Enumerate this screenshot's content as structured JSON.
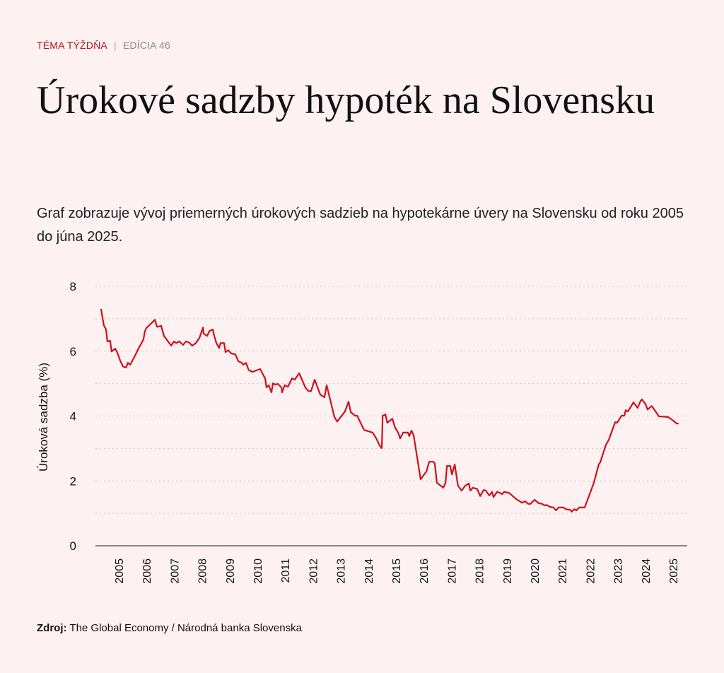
{
  "header": {
    "topic": "TÉMA TÝŽDŇA",
    "separator": "|",
    "edition": "EDÍCIA 46"
  },
  "title": "Úrokové sadzby hypoték na Slovensku",
  "subtitle": "Graf zobrazuje vývoj priemerných úrokových sadzieb na hypotekárne úvery na Slovensku od roku 2005 do júna 2025.",
  "source": {
    "label": "Zdroj:",
    "text": "The Global Economy / Národná banka Slovenska"
  },
  "colors": {
    "line": "#d0101c",
    "background": "#fdf1f1",
    "accent": "#b3131b"
  },
  "chart_data": {
    "type": "line",
    "title": "",
    "xlabel": "",
    "ylabel": "Úroková sadzba (%)",
    "ylim": [
      0,
      8
    ],
    "xlim": [
      2004.2,
      2025.5
    ],
    "yticks": [
      0,
      2,
      4,
      6,
      8
    ],
    "xticks": [
      "2005",
      "2006",
      "2007",
      "2008",
      "2009",
      "2010",
      "2011",
      "2012",
      "2013",
      "2014",
      "2015",
      "2016",
      "2017",
      "2018",
      "2019",
      "2020",
      "2021",
      "2022",
      "2023",
      "2024",
      "2025"
    ],
    "grid": "horizontal dotted, every 1",
    "series": [
      {
        "name": "Úroková sadzba",
        "points": [
          [
            2004.36,
            7.3
          ],
          [
            2004.46,
            6.8
          ],
          [
            2004.54,
            6.67
          ],
          [
            2004.59,
            6.3
          ],
          [
            2004.69,
            6.32
          ],
          [
            2004.74,
            5.99
          ],
          [
            2004.87,
            6.08
          ],
          [
            2004.95,
            5.95
          ],
          [
            2005.05,
            5.71
          ],
          [
            2005.15,
            5.53
          ],
          [
            2005.26,
            5.49
          ],
          [
            2005.33,
            5.64
          ],
          [
            2005.41,
            5.58
          ],
          [
            2005.56,
            5.82
          ],
          [
            2005.71,
            6.08
          ],
          [
            2005.89,
            6.36
          ],
          [
            2005.94,
            6.6
          ],
          [
            2005.99,
            6.71
          ],
          [
            2006.15,
            6.84
          ],
          [
            2006.3,
            6.97
          ],
          [
            2006.38,
            6.75
          ],
          [
            2006.53,
            6.78
          ],
          [
            2006.63,
            6.47
          ],
          [
            2006.89,
            6.17
          ],
          [
            2006.99,
            6.3
          ],
          [
            2007.07,
            6.25
          ],
          [
            2007.19,
            6.3
          ],
          [
            2007.32,
            6.19
          ],
          [
            2007.42,
            6.3
          ],
          [
            2007.53,
            6.27
          ],
          [
            2007.65,
            6.17
          ],
          [
            2007.78,
            6.25
          ],
          [
            2007.91,
            6.41
          ],
          [
            2008.04,
            6.73
          ],
          [
            2008.06,
            6.54
          ],
          [
            2008.19,
            6.47
          ],
          [
            2008.27,
            6.62
          ],
          [
            2008.39,
            6.67
          ],
          [
            2008.44,
            6.49
          ],
          [
            2008.52,
            6.25
          ],
          [
            2008.62,
            6.1
          ],
          [
            2008.67,
            6.25
          ],
          [
            2008.8,
            6.25
          ],
          [
            2008.85,
            5.97
          ],
          [
            2008.95,
            6.03
          ],
          [
            2009.06,
            5.93
          ],
          [
            2009.21,
            5.9
          ],
          [
            2009.31,
            5.69
          ],
          [
            2009.44,
            5.64
          ],
          [
            2009.49,
            5.58
          ],
          [
            2009.59,
            5.64
          ],
          [
            2009.69,
            5.42
          ],
          [
            2009.82,
            5.36
          ],
          [
            2010.1,
            5.45
          ],
          [
            2010.28,
            5.16
          ],
          [
            2010.33,
            4.88
          ],
          [
            2010.41,
            4.95
          ],
          [
            2010.51,
            4.73
          ],
          [
            2010.56,
            5.01
          ],
          [
            2010.64,
            4.97
          ],
          [
            2010.74,
            4.99
          ],
          [
            2010.87,
            4.88
          ],
          [
            2010.89,
            4.73
          ],
          [
            2010.99,
            4.95
          ],
          [
            2011.1,
            4.9
          ],
          [
            2011.25,
            5.16
          ],
          [
            2011.35,
            5.12
          ],
          [
            2011.51,
            5.32
          ],
          [
            2011.73,
            4.88
          ],
          [
            2011.84,
            4.77
          ],
          [
            2011.94,
            4.77
          ],
          [
            2012.07,
            5.12
          ],
          [
            2012.27,
            4.66
          ],
          [
            2012.42,
            4.58
          ],
          [
            2012.5,
            4.95
          ],
          [
            2012.78,
            3.97
          ],
          [
            2012.88,
            3.83
          ],
          [
            2013.16,
            4.14
          ],
          [
            2013.29,
            4.44
          ],
          [
            2013.37,
            4.12
          ],
          [
            2013.52,
            4.01
          ],
          [
            2013.6,
            4.01
          ],
          [
            2013.85,
            3.57
          ],
          [
            2014.16,
            3.49
          ],
          [
            2014.29,
            3.31
          ],
          [
            2014.41,
            3.09
          ],
          [
            2014.49,
            3.01
          ],
          [
            2014.52,
            4.01
          ],
          [
            2014.62,
            4.05
          ],
          [
            2014.69,
            3.79
          ],
          [
            2014.87,
            3.92
          ],
          [
            2014.97,
            3.64
          ],
          [
            2015.08,
            3.49
          ],
          [
            2015.15,
            3.31
          ],
          [
            2015.26,
            3.49
          ],
          [
            2015.43,
            3.49
          ],
          [
            2015.48,
            3.38
          ],
          [
            2015.56,
            3.55
          ],
          [
            2015.64,
            3.4
          ],
          [
            2015.89,
            2.05
          ],
          [
            2016.1,
            2.29
          ],
          [
            2016.2,
            2.59
          ],
          [
            2016.35,
            2.59
          ],
          [
            2016.4,
            2.53
          ],
          [
            2016.48,
            1.94
          ],
          [
            2016.71,
            1.79
          ],
          [
            2016.79,
            1.94
          ],
          [
            2016.84,
            2.46
          ],
          [
            2016.96,
            2.46
          ],
          [
            2017.02,
            2.2
          ],
          [
            2017.12,
            2.51
          ],
          [
            2017.24,
            1.85
          ],
          [
            2017.37,
            1.7
          ],
          [
            2017.5,
            1.85
          ],
          [
            2017.63,
            1.92
          ],
          [
            2017.68,
            1.7
          ],
          [
            2017.78,
            1.79
          ],
          [
            2017.93,
            1.75
          ],
          [
            2018.04,
            1.53
          ],
          [
            2018.16,
            1.72
          ],
          [
            2018.24,
            1.7
          ],
          [
            2018.37,
            1.55
          ],
          [
            2018.47,
            1.66
          ],
          [
            2018.52,
            1.5
          ],
          [
            2018.65,
            1.66
          ],
          [
            2018.75,
            1.63
          ],
          [
            2018.83,
            1.59
          ],
          [
            2018.9,
            1.66
          ],
          [
            2019.08,
            1.63
          ],
          [
            2019.34,
            1.44
          ],
          [
            2019.54,
            1.33
          ],
          [
            2019.67,
            1.37
          ],
          [
            2019.77,
            1.29
          ],
          [
            2019.85,
            1.29
          ],
          [
            2020.0,
            1.42
          ],
          [
            2020.15,
            1.31
          ],
          [
            2020.28,
            1.29
          ],
          [
            2020.36,
            1.24
          ],
          [
            2020.43,
            1.26
          ],
          [
            2020.56,
            1.2
          ],
          [
            2020.69,
            1.18
          ],
          [
            2020.77,
            1.09
          ],
          [
            2020.87,
            1.18
          ],
          [
            2021.05,
            1.18
          ],
          [
            2021.12,
            1.13
          ],
          [
            2021.28,
            1.11
          ],
          [
            2021.35,
            1.05
          ],
          [
            2021.43,
            1.13
          ],
          [
            2021.51,
            1.09
          ],
          [
            2021.61,
            1.18
          ],
          [
            2021.81,
            1.18
          ],
          [
            2022.14,
            1.94
          ],
          [
            2022.32,
            2.51
          ],
          [
            2022.37,
            2.57
          ],
          [
            2022.58,
            3.12
          ],
          [
            2022.68,
            3.27
          ],
          [
            2022.91,
            3.81
          ],
          [
            2022.98,
            3.79
          ],
          [
            2023.14,
            4.01
          ],
          [
            2023.24,
            4.01
          ],
          [
            2023.29,
            4.18
          ],
          [
            2023.37,
            4.14
          ],
          [
            2023.57,
            4.42
          ],
          [
            2023.72,
            4.25
          ],
          [
            2023.83,
            4.47
          ],
          [
            2023.88,
            4.51
          ],
          [
            2024.01,
            4.36
          ],
          [
            2024.08,
            4.2
          ],
          [
            2024.23,
            4.31
          ],
          [
            2024.49,
            3.99
          ],
          [
            2024.82,
            3.97
          ],
          [
            2024.97,
            3.88
          ],
          [
            2025.13,
            3.77
          ],
          [
            2025.2,
            3.77
          ]
        ]
      }
    ]
  }
}
